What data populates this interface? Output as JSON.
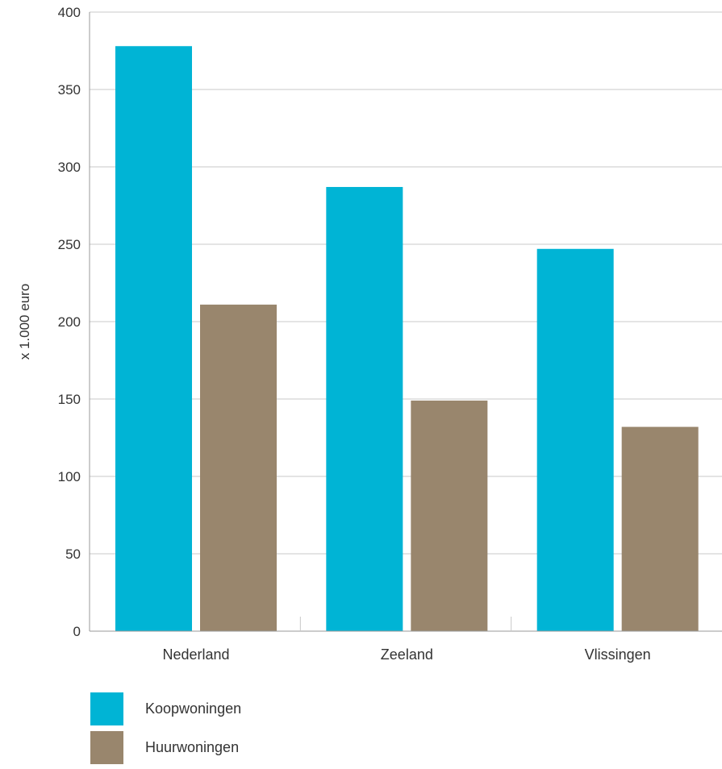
{
  "chart_data": {
    "type": "bar",
    "title": "",
    "xlabel": "",
    "ylabel": "x 1.000 euro",
    "ylim": [
      0,
      400
    ],
    "yticks": [
      0,
      50,
      100,
      150,
      200,
      250,
      300,
      350,
      400
    ],
    "grid": true,
    "legend_position": "bottom-left",
    "categories": [
      "Nederland",
      "Zeeland",
      "Vlissingen"
    ],
    "series": [
      {
        "name": "Koopwoningen",
        "color": "#00b4d5",
        "values": [
          378,
          287,
          247
        ]
      },
      {
        "name": "Huurwoningen",
        "color": "#99866d",
        "values": [
          211,
          149,
          132
        ]
      }
    ]
  }
}
